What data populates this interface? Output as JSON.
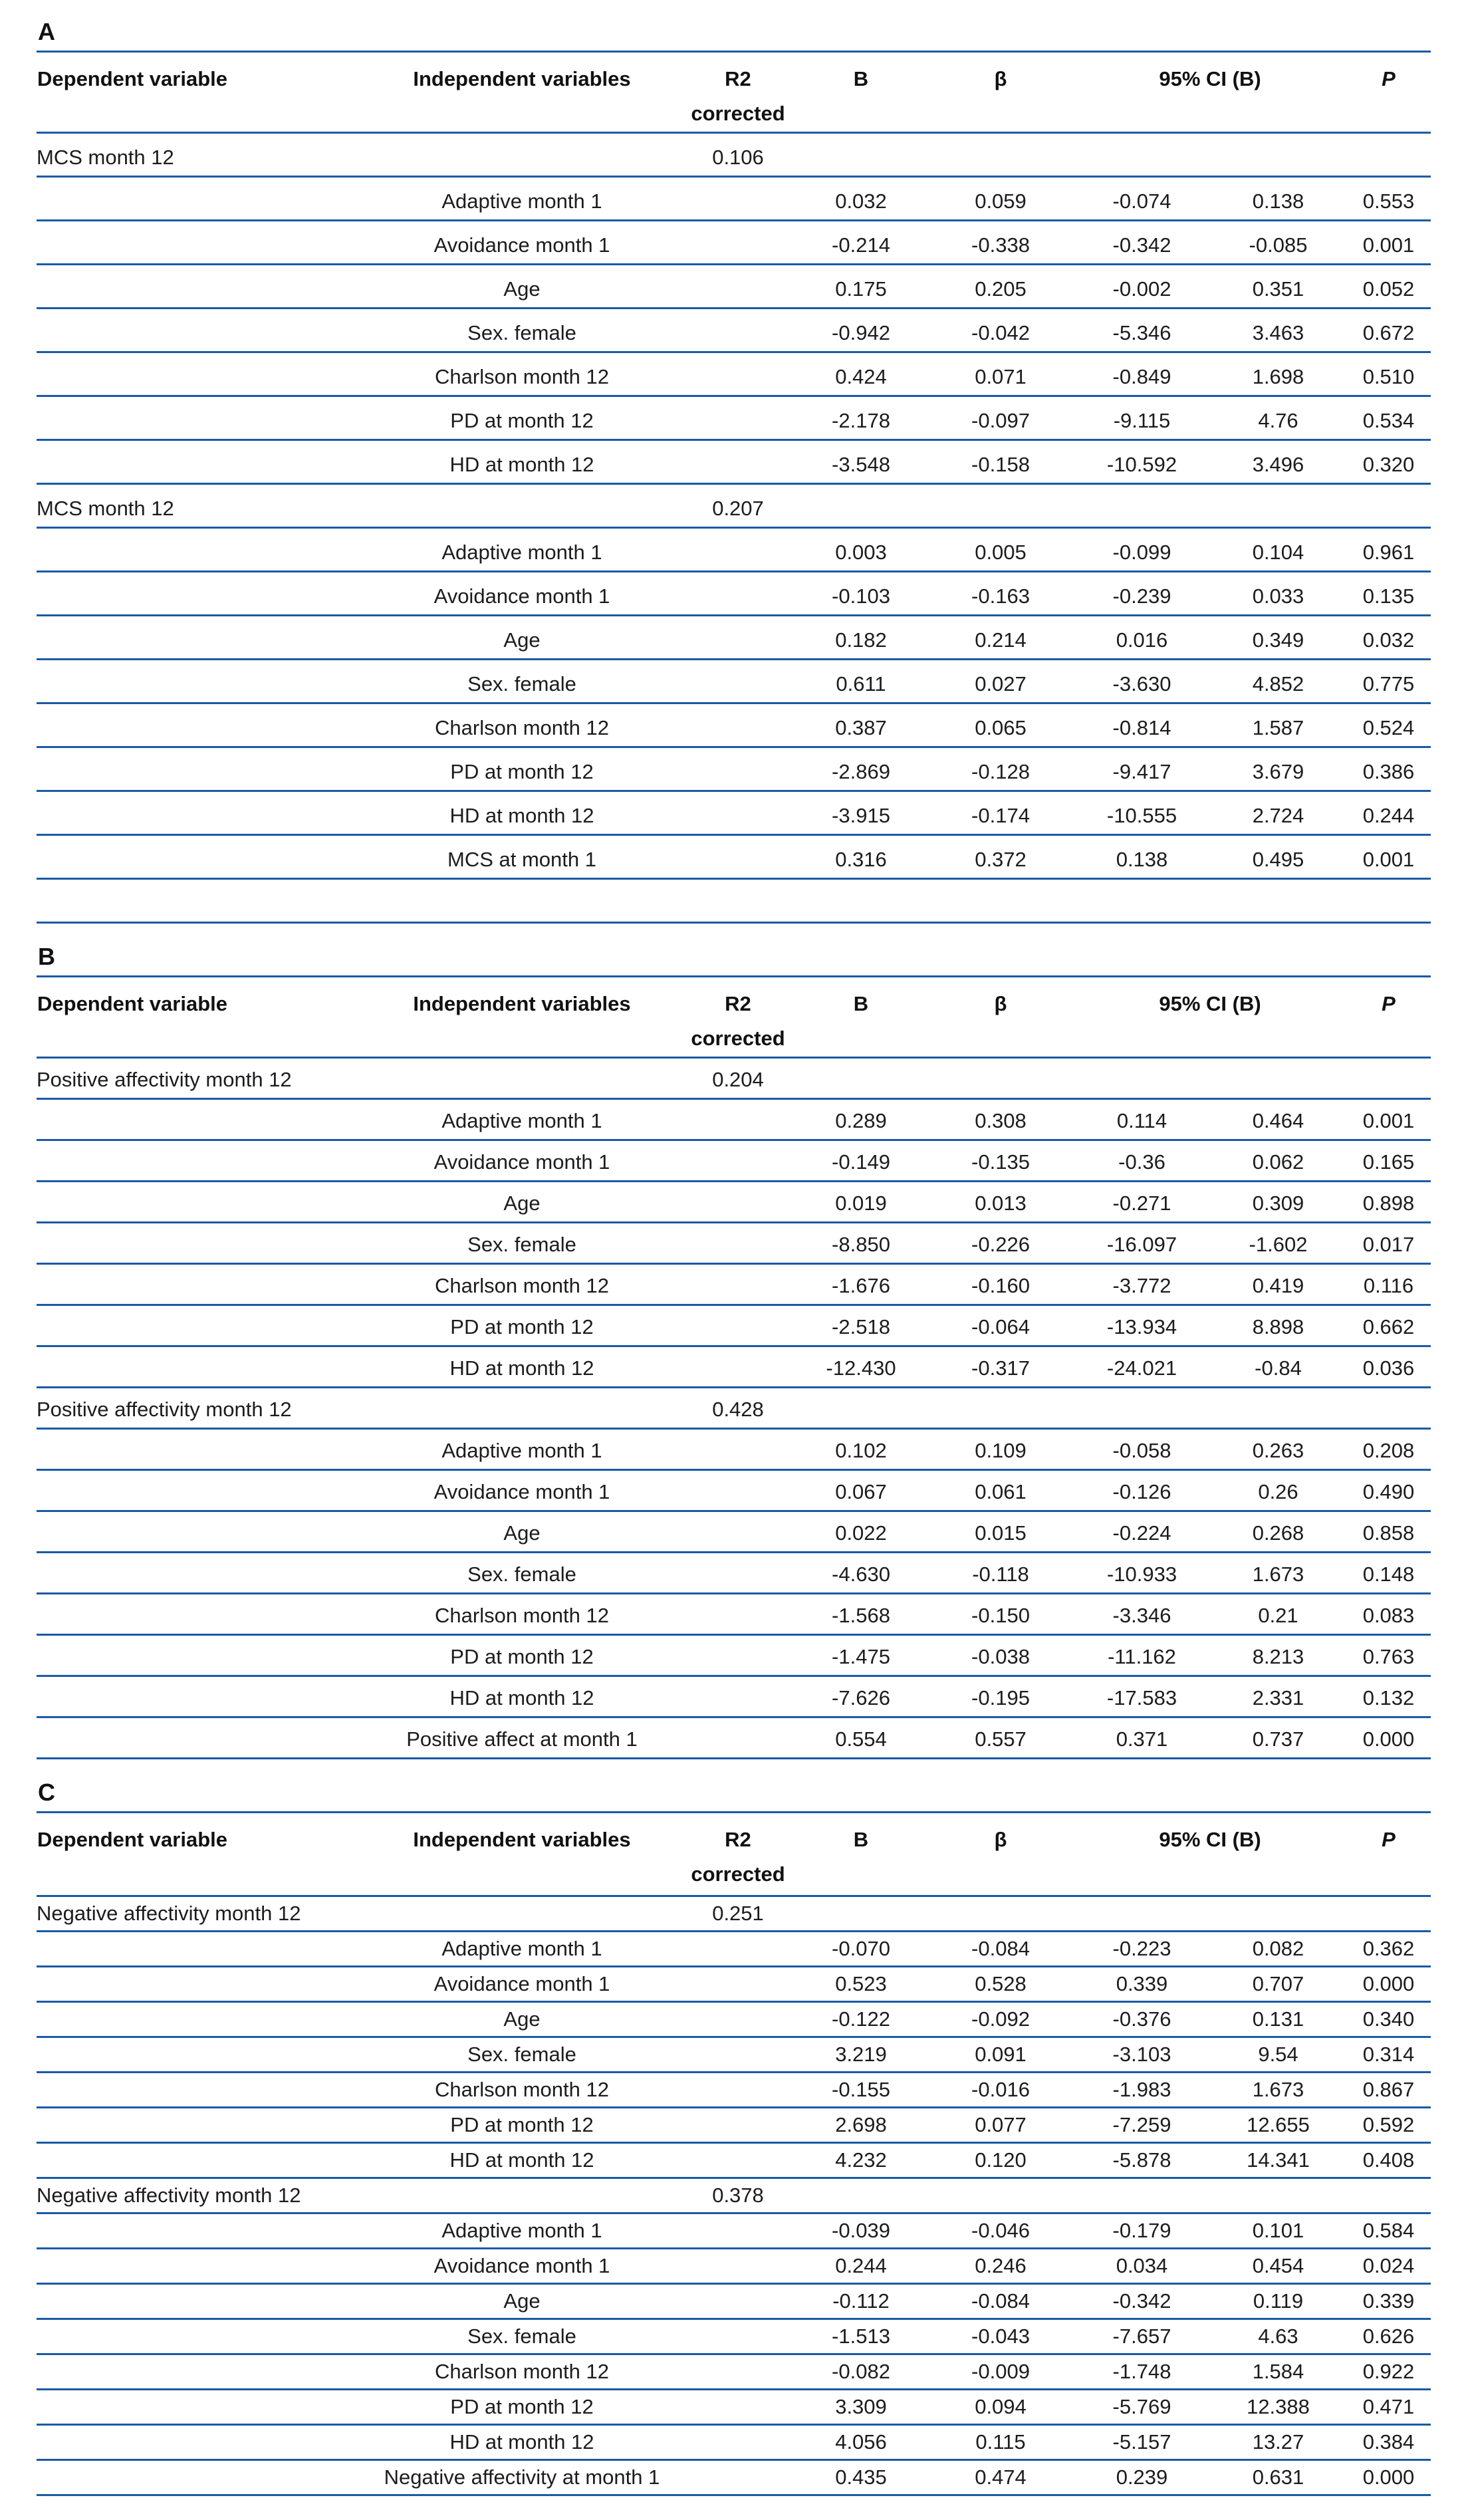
{
  "colors": {
    "rule_blue": "#1b5aa5",
    "text": "#1c1c1c"
  },
  "header": {
    "dependent": "Dependent variable",
    "independent": "Independent variables",
    "r2": "R2",
    "r2_sub": "corrected",
    "b": "B",
    "beta": "β",
    "ci": "95% CI (B)",
    "p": "P"
  },
  "sections": [
    {
      "label": "A",
      "rows": [
        {
          "dep": "MCS month 12",
          "r2": "0.106"
        },
        {
          "indep": "Adaptive month 1",
          "b": "0.032",
          "beta": "0.059",
          "ci_low": "-0.074",
          "ci_high": "0.138",
          "p": "0.553"
        },
        {
          "indep": "Avoidance month 1",
          "b": "-0.214",
          "beta": "-0.338",
          "ci_low": "-0.342",
          "ci_high": "-0.085",
          "p": "0.001"
        },
        {
          "indep": "Age",
          "b": "0.175",
          "beta": "0.205",
          "ci_low": "-0.002",
          "ci_high": "0.351",
          "p": "0.052"
        },
        {
          "indep": "Sex. female",
          "b": "-0.942",
          "beta": "-0.042",
          "ci_low": "-5.346",
          "ci_high": "3.463",
          "p": "0.672"
        },
        {
          "indep": "Charlson month 12",
          "b": "0.424",
          "beta": "0.071",
          "ci_low": "-0.849",
          "ci_high": "1.698",
          "p": "0.510"
        },
        {
          "indep": "PD at month 12",
          "b": "-2.178",
          "beta": "-0.097",
          "ci_low": "-9.115",
          "ci_high": "4.76",
          "p": "0.534"
        },
        {
          "indep": "HD at month 12",
          "b": "-3.548",
          "beta": "-0.158",
          "ci_low": "-10.592",
          "ci_high": "3.496",
          "p": "0.320"
        },
        {
          "dep": "MCS month 12",
          "r2": "0.207"
        },
        {
          "indep": "Adaptive month 1",
          "b": "0.003",
          "beta": "0.005",
          "ci_low": "-0.099",
          "ci_high": "0.104",
          "p": "0.961"
        },
        {
          "indep": "Avoidance month 1",
          "b": "-0.103",
          "beta": "-0.163",
          "ci_low": "-0.239",
          "ci_high": "0.033",
          "p": "0.135"
        },
        {
          "indep": "Age",
          "b": "0.182",
          "beta": "0.214",
          "ci_low": "0.016",
          "ci_high": "0.349",
          "p": "0.032"
        },
        {
          "indep": "Sex. female",
          "b": "0.611",
          "beta": "0.027",
          "ci_low": "-3.630",
          "ci_high": "4.852",
          "p": "0.775"
        },
        {
          "indep": "Charlson month 12",
          "b": "0.387",
          "beta": "0.065",
          "ci_low": "-0.814",
          "ci_high": "1.587",
          "p": "0.524"
        },
        {
          "indep": "PD at month 12",
          "b": "-2.869",
          "beta": "-0.128",
          "ci_low": "-9.417",
          "ci_high": "3.679",
          "p": "0.386"
        },
        {
          "indep": "HD at month 12",
          "b": "-3.915",
          "beta": "-0.174",
          "ci_low": "-10.555",
          "ci_high": "2.724",
          "p": "0.244"
        },
        {
          "indep": "MCS at month 1",
          "b": "0.316",
          "beta": "0.372",
          "ci_low": "0.138",
          "ci_high": "0.495",
          "p": "0.001"
        },
        {}
      ]
    },
    {
      "label": "B",
      "rows": [
        {
          "dep": "Positive affectivity month 12",
          "r2": "0.204"
        },
        {
          "indep": "Adaptive month 1",
          "b": "0.289",
          "beta": "0.308",
          "ci_low": "0.114",
          "ci_high": "0.464",
          "p": "0.001"
        },
        {
          "indep": "Avoidance month 1",
          "b": "-0.149",
          "beta": "-0.135",
          "ci_low": "-0.36",
          "ci_high": "0.062",
          "p": "0.165"
        },
        {
          "indep": "Age",
          "b": "0.019",
          "beta": "0.013",
          "ci_low": "-0.271",
          "ci_high": "0.309",
          "p": "0.898"
        },
        {
          "indep": "Sex. female",
          "b": "-8.850",
          "beta": "-0.226",
          "ci_low": "-16.097",
          "ci_high": "-1.602",
          "p": "0.017"
        },
        {
          "indep": "Charlson month 12",
          "b": "-1.676",
          "beta": "-0.160",
          "ci_low": "-3.772",
          "ci_high": "0.419",
          "p": "0.116"
        },
        {
          "indep": "PD at month 12",
          "b": "-2.518",
          "beta": "-0.064",
          "ci_low": "-13.934",
          "ci_high": "8.898",
          "p": "0.662"
        },
        {
          "indep": "HD at month 12",
          "b": "-12.430",
          "beta": "-0.317",
          "ci_low": "-24.021",
          "ci_high": "-0.84",
          "p": "0.036"
        },
        {
          "dep": "Positive affectivity month 12",
          "r2": "0.428"
        },
        {
          "indep": "Adaptive month 1",
          "b": "0.102",
          "beta": "0.109",
          "ci_low": "-0.058",
          "ci_high": "0.263",
          "p": "0.208"
        },
        {
          "indep": "Avoidance month 1",
          "b": "0.067",
          "beta": "0.061",
          "ci_low": "-0.126",
          "ci_high": "0.26",
          "p": "0.490"
        },
        {
          "indep": "Age",
          "b": "0.022",
          "beta": "0.015",
          "ci_low": "-0.224",
          "ci_high": "0.268",
          "p": "0.858"
        },
        {
          "indep": "Sex. female",
          "b": "-4.630",
          "beta": "-0.118",
          "ci_low": "-10.933",
          "ci_high": "1.673",
          "p": "0.148"
        },
        {
          "indep": "Charlson month 12",
          "b": "-1.568",
          "beta": "-0.150",
          "ci_low": "-3.346",
          "ci_high": "0.21",
          "p": "0.083"
        },
        {
          "indep": "PD at month 12",
          "b": "-1.475",
          "beta": "-0.038",
          "ci_low": "-11.162",
          "ci_high": "8.213",
          "p": "0.763"
        },
        {
          "indep": "HD at month 12",
          "b": "-7.626",
          "beta": "-0.195",
          "ci_low": "-17.583",
          "ci_high": "2.331",
          "p": "0.132"
        },
        {
          "indep": "Positive affect at month 1",
          "b": "0.554",
          "beta": "0.557",
          "ci_low": "0.371",
          "ci_high": "0.737",
          "p": "0.000"
        }
      ]
    },
    {
      "label": "C",
      "rows": [
        {
          "dep": "Negative affectivity month 12",
          "r2": "0.251"
        },
        {
          "indep": "Adaptive month 1",
          "b": "-0.070",
          "beta": "-0.084",
          "ci_low": "-0.223",
          "ci_high": "0.082",
          "p": "0.362"
        },
        {
          "indep": "Avoidance month 1",
          "b": "0.523",
          "beta": "0.528",
          "ci_low": "0.339",
          "ci_high": "0.707",
          "p": "0.000"
        },
        {
          "indep": "Age",
          "b": "-0.122",
          "beta": "-0.092",
          "ci_low": "-0.376",
          "ci_high": "0.131",
          "p": "0.340"
        },
        {
          "indep": "Sex. female",
          "b": "3.219",
          "beta": "0.091",
          "ci_low": "-3.103",
          "ci_high": "9.54",
          "p": "0.314"
        },
        {
          "indep": "Charlson month 12",
          "b": "-0.155",
          "beta": "-0.016",
          "ci_low": "-1.983",
          "ci_high": "1.673",
          "p": "0.867"
        },
        {
          "indep": "PD at month 12",
          "b": "2.698",
          "beta": "0.077",
          "ci_low": "-7.259",
          "ci_high": "12.655",
          "p": "0.592"
        },
        {
          "indep": "HD at month 12",
          "b": "4.232",
          "beta": "0.120",
          "ci_low": "-5.878",
          "ci_high": "14.341",
          "p": "0.408"
        },
        {
          "dep": "Negative affectivity month 12",
          "r2": "0.378"
        },
        {
          "indep": "Adaptive month 1",
          "b": "-0.039",
          "beta": "-0.046",
          "ci_low": "-0.179",
          "ci_high": "0.101",
          "p": "0.584"
        },
        {
          "indep": "Avoidance month 1",
          "b": "0.244",
          "beta": "0.246",
          "ci_low": "0.034",
          "ci_high": "0.454",
          "p": "0.024"
        },
        {
          "indep": "Age",
          "b": "-0.112",
          "beta": "-0.084",
          "ci_low": "-0.342",
          "ci_high": "0.119",
          "p": "0.339"
        },
        {
          "indep": "Sex. female",
          "b": "-1.513",
          "beta": "-0.043",
          "ci_low": "-7.657",
          "ci_high": "4.63",
          "p": "0.626"
        },
        {
          "indep": "Charlson month 12",
          "b": "-0.082",
          "beta": "-0.009",
          "ci_low": "-1.748",
          "ci_high": "1.584",
          "p": "0.922"
        },
        {
          "indep": "PD at month 12",
          "b": "3.309",
          "beta": "0.094",
          "ci_low": "-5.769",
          "ci_high": "12.388",
          "p": "0.471"
        },
        {
          "indep": "HD at month 12",
          "b": "4.056",
          "beta": "0.115",
          "ci_low": "-5.157",
          "ci_high": "13.27",
          "p": "0.384"
        },
        {
          "indep": "Negative affectivity at month 1",
          "b": "0.435",
          "beta": "0.474",
          "ci_low": "0.239",
          "ci_high": "0.631",
          "p": "0.000"
        }
      ]
    }
  ]
}
